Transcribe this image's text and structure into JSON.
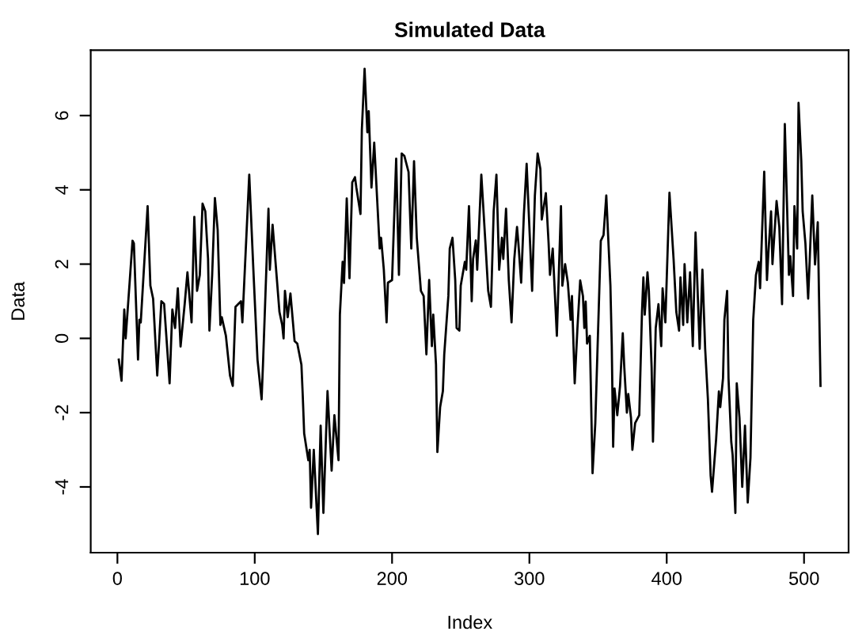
{
  "chart_data": {
    "type": "line",
    "title": "Simulated Data",
    "xlabel": "Index",
    "ylabel": "Data",
    "xlim": [
      -19.44,
      532.44
    ],
    "ylim": [
      -5.77,
      7.76
    ],
    "xticks": [
      0,
      100,
      200,
      300,
      400,
      500
    ],
    "yticks": [
      -4,
      -2,
      0,
      2,
      4,
      6
    ],
    "grid": false,
    "marker": "none",
    "line_style": "solid",
    "series": [
      {
        "color": "#000000",
        "x": [
          1,
          3,
          5,
          6,
          9,
          11,
          12,
          15,
          16,
          17,
          22,
          24,
          26,
          29,
          32,
          34,
          38,
          40,
          42,
          44,
          46,
          49,
          51,
          54,
          56,
          58,
          60,
          62,
          64,
          66,
          67,
          69,
          71,
          73,
          75,
          76,
          79,
          82,
          84,
          86,
          90,
          91,
          96,
          99,
          102,
          105,
          106,
          110,
          111,
          113,
          118,
          120,
          121,
          122,
          124,
          126,
          129,
          131,
          134,
          135,
          136,
          139,
          140,
          141,
          143,
          146,
          148,
          150,
          153,
          156,
          158,
          161,
          162,
          164,
          165,
          167,
          169,
          171,
          173,
          174,
          177,
          178,
          180,
          182,
          183,
          185,
          187,
          191,
          192,
          194,
          196,
          197,
          200,
          203,
          205,
          207,
          209,
          212,
          214,
          216,
          218,
          221,
          223,
          225,
          227,
          229,
          230,
          232,
          233,
          235,
          237,
          238,
          241,
          242,
          244,
          246,
          247,
          249,
          250,
          253,
          254,
          256,
          258,
          259,
          261,
          262,
          265,
          268,
          270,
          272,
          274,
          276,
          278,
          280,
          281,
          283,
          285,
          287,
          289,
          291,
          292,
          294,
          296,
          298,
          302,
          304,
          306,
          308,
          309,
          312,
          314,
          315,
          317,
          320,
          323,
          324,
          326,
          328,
          330,
          331,
          333,
          335,
          337,
          339,
          340,
          341,
          342,
          344,
          346,
          348,
          352,
          354,
          356,
          359,
          360,
          361,
          362,
          364,
          366,
          368,
          369,
          371,
          372,
          374,
          375,
          377,
          380,
          382,
          383,
          384,
          386,
          387,
          389,
          390,
          392,
          394,
          396,
          397,
          399,
          402,
          405,
          407,
          409,
          410,
          412,
          413,
          415,
          417,
          419,
          421,
          424,
          426,
          428,
          430,
          432,
          433,
          436,
          438,
          439,
          441,
          442,
          444,
          445,
          447,
          448,
          450,
          451,
          453,
          455,
          457,
          459,
          461,
          463,
          465,
          467,
          468,
          471,
          473,
          474,
          476,
          477,
          480,
          482,
          484,
          486,
          489,
          490,
          492,
          493,
          495,
          496,
          498,
          499,
          501,
          503,
          506,
          508,
          510,
          512
        ],
        "values": [
          -0.57,
          -1.14,
          0.78,
          0,
          1.56,
          2.63,
          2.56,
          -0.57,
          0.5,
          0.43,
          3.56,
          1.42,
          1.07,
          -1.0,
          1.0,
          0.93,
          -1.21,
          0.78,
          0.28,
          1.35,
          -0.22,
          0.93,
          1.78,
          0.43,
          3.27,
          1.28,
          1.71,
          3.63,
          3.42,
          2.14,
          0.21,
          1.71,
          3.78,
          2.92,
          0.36,
          0.57,
          0.07,
          -1.0,
          -1.28,
          0.85,
          1.0,
          0.43,
          4.41,
          1.85,
          -0.57,
          -1.64,
          -0.71,
          3.49,
          1.85,
          3.06,
          0.71,
          0.36,
          0,
          1.28,
          0.57,
          1.21,
          -0.07,
          -0.14,
          -0.71,
          -1.57,
          -2.56,
          -3.28,
          -3.0,
          -4.56,
          -3.0,
          -5.27,
          -2.35,
          -4.7,
          -1.42,
          -3.56,
          -2.07,
          -3.28,
          0.64,
          2.06,
          1.49,
          3.77,
          1.62,
          4.2,
          4.34,
          4.06,
          3.35,
          5.62,
          7.26,
          5.55,
          6.12,
          4.06,
          5.27,
          2.42,
          2.71,
          1.85,
          0.43,
          1.5,
          1.57,
          4.84,
          1.71,
          4.98,
          4.91,
          4.48,
          2.42,
          4.77,
          2.71,
          1.28,
          1.14,
          -0.43,
          1.57,
          -0.21,
          0.64,
          -0.71,
          -3.06,
          -1.85,
          -1.42,
          -0.43,
          1.14,
          2.42,
          2.71,
          1.57,
          0.28,
          0.21,
          1.42,
          2.06,
          1.85,
          3.56,
          1.0,
          2.14,
          2.64,
          1.85,
          4.41,
          2.56,
          1.28,
          0.85,
          3.42,
          4.41,
          1.85,
          2.71,
          2.14,
          3.49,
          1.57,
          0.43,
          2.14,
          3.0,
          2.56,
          1.5,
          3.35,
          4.7,
          1.28,
          3.85,
          4.98,
          4.56,
          3.2,
          3.91,
          2.56,
          1.71,
          2.42,
          0.07,
          3.56,
          1.42,
          2.0,
          1.5,
          0.5,
          1.14,
          -1.21,
          0.28,
          1.56,
          1.14,
          0.28,
          0.99,
          -0.14,
          0.07,
          -3.63,
          -2.28,
          2.63,
          2.78,
          3.85,
          1.42,
          -0.22,
          -2.92,
          -1.35,
          -2.07,
          -1.29,
          0.14,
          -0.71,
          -2.0,
          -1.5,
          -2.14,
          -3.0,
          -2.28,
          -2.07,
          0.71,
          1.64,
          0.64,
          1.78,
          1.28,
          -0.78,
          -2.78,
          0.28,
          0.92,
          -0.21,
          1.35,
          0.43,
          3.92,
          2.14,
          0.71,
          0.21,
          1.64,
          0.36,
          2.0,
          0.43,
          1.78,
          -0.21,
          2.85,
          -0.28,
          1.85,
          -0.28,
          -1.64,
          -3.7,
          -4.13,
          -2.71,
          -1.43,
          -1.85,
          -1.07,
          0.5,
          1.28,
          -1.07,
          -2.78,
          -3.14,
          -4.7,
          -1.21,
          -2.14,
          -4.0,
          -2.35,
          -4.42,
          -3.21,
          0.5,
          1.71,
          2.06,
          1.35,
          4.49,
          1.57,
          2.28,
          3.42,
          2.0,
          3.7,
          3.0,
          0.92,
          5.77,
          1.71,
          2.21,
          1.14,
          3.56,
          2.42,
          6.34,
          4.77,
          3.42,
          2.56,
          1.07,
          3.85,
          1.99,
          3.13,
          -1.28
        ]
      }
    ]
  }
}
